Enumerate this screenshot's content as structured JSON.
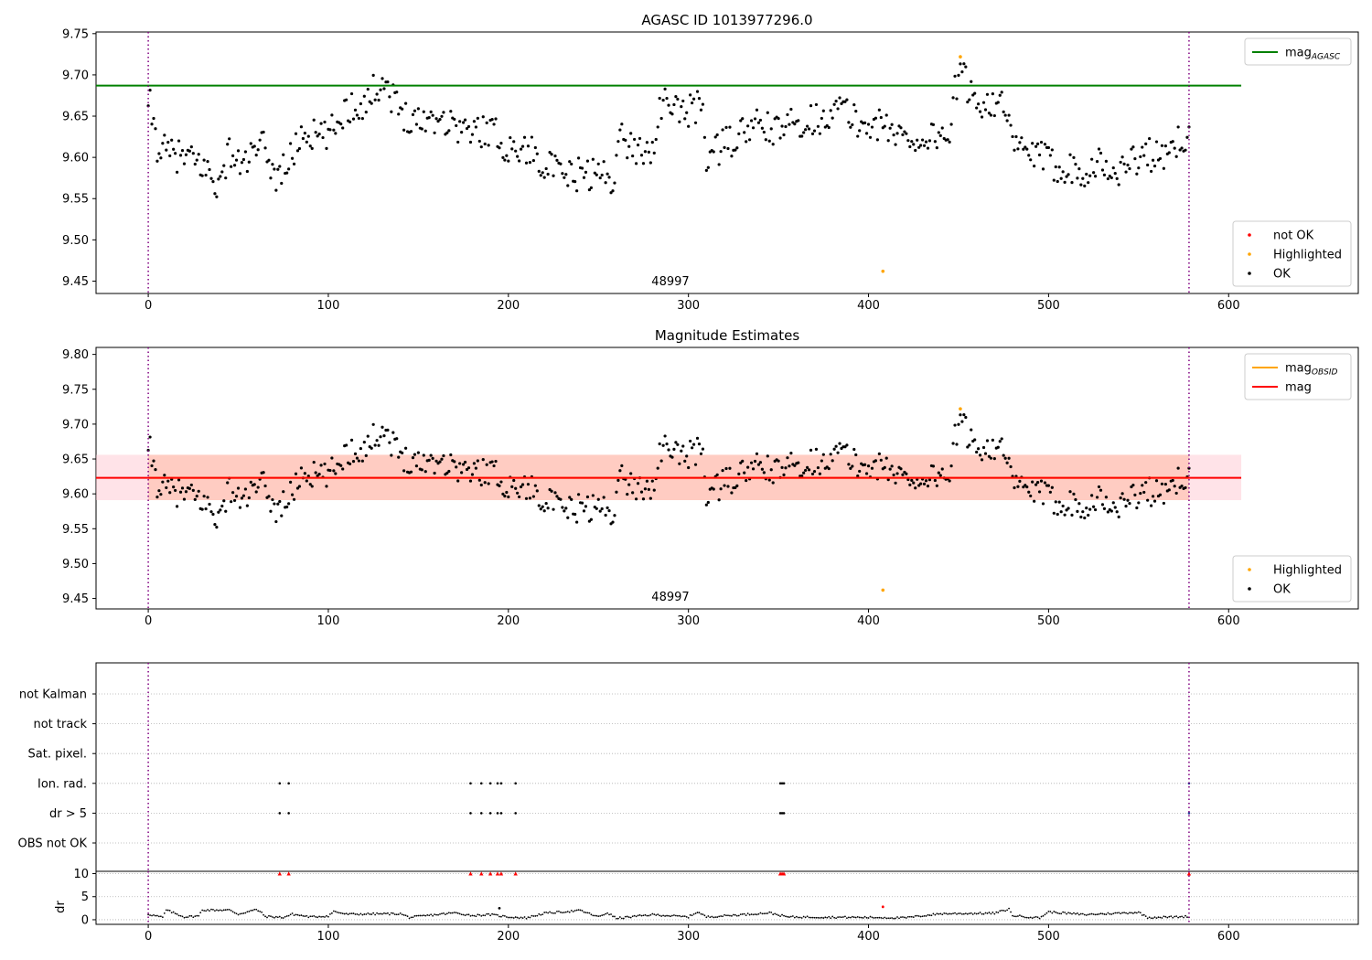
{
  "chart_data": [
    {
      "type": "scatter",
      "title": "AGASC ID 1013977296.0",
      "xlim": [
        -29,
        672
      ],
      "ylim": [
        9.435,
        9.752
      ],
      "yticks": [
        "9.45",
        "9.50",
        "9.55",
        "9.60",
        "9.65",
        "9.70",
        "9.75"
      ],
      "xticks": [
        "0",
        "100",
        "200",
        "300",
        "400",
        "500",
        "600"
      ],
      "grid": false,
      "annotation": "48997",
      "annotation_x": 290,
      "vlines_x": [
        0,
        578
      ],
      "hline": {
        "name": "mag_AGASC",
        "value": 9.687,
        "x_range": [
          -29,
          607
        ],
        "color": "#008000"
      },
      "legends": [
        {
          "position": "top-right",
          "entries": [
            {
              "label": "mag",
              "sub": "AGASC",
              "color": "#008000",
              "marker": "line"
            }
          ]
        },
        {
          "position": "bottom-right",
          "entries": [
            {
              "label": "not OK",
              "color": "#ff0000",
              "marker": "dot"
            },
            {
              "label": "Highlighted",
              "color": "#ffa500",
              "marker": "dot"
            },
            {
              "label": "OK",
              "color": "#000000",
              "marker": "dot"
            }
          ]
        }
      ],
      "highlighted": [
        [
          451,
          9.722
        ],
        [
          408,
          9.462
        ]
      ],
      "series_ok_anchors": [
        [
          0,
          9.65
        ],
        [
          1,
          9.662
        ],
        [
          5,
          9.615
        ],
        [
          10,
          9.605
        ],
        [
          20,
          9.6
        ],
        [
          30,
          9.59
        ],
        [
          40,
          9.565
        ],
        [
          45,
          9.61
        ],
        [
          50,
          9.59
        ],
        [
          60,
          9.605
        ],
        [
          65,
          9.615
        ],
        [
          70,
          9.575
        ],
        [
          80,
          9.6
        ],
        [
          85,
          9.63
        ],
        [
          95,
          9.625
        ],
        [
          100,
          9.625
        ],
        [
          110,
          9.66
        ],
        [
          120,
          9.665
        ],
        [
          130,
          9.695
        ],
        [
          135,
          9.675
        ],
        [
          140,
          9.655
        ],
        [
          150,
          9.645
        ],
        [
          160,
          9.65
        ],
        [
          170,
          9.64
        ],
        [
          180,
          9.63
        ],
        [
          190,
          9.635
        ],
        [
          200,
          9.61
        ],
        [
          210,
          9.61
        ],
        [
          220,
          9.595
        ],
        [
          230,
          9.575
        ],
        [
          240,
          9.58
        ],
        [
          250,
          9.58
        ],
        [
          258,
          9.575
        ],
        [
          262,
          9.625
        ],
        [
          270,
          9.61
        ],
        [
          280,
          9.61
        ],
        [
          285,
          9.665
        ],
        [
          300,
          9.655
        ],
        [
          308,
          9.665
        ],
        [
          310,
          9.6
        ],
        [
          320,
          9.615
        ],
        [
          330,
          9.63
        ],
        [
          340,
          9.64
        ],
        [
          350,
          9.63
        ],
        [
          360,
          9.645
        ],
        [
          370,
          9.645
        ],
        [
          380,
          9.655
        ],
        [
          385,
          9.66
        ],
        [
          395,
          9.64
        ],
        [
          405,
          9.64
        ],
        [
          415,
          9.63
        ],
        [
          425,
          9.62
        ],
        [
          435,
          9.625
        ],
        [
          445,
          9.63
        ],
        [
          448,
          9.68
        ],
        [
          452,
          9.7
        ],
        [
          460,
          9.665
        ],
        [
          470,
          9.67
        ],
        [
          475,
          9.66
        ],
        [
          480,
          9.615
        ],
        [
          490,
          9.605
        ],
        [
          500,
          9.595
        ],
        [
          505,
          9.59
        ],
        [
          520,
          9.585
        ],
        [
          530,
          9.595
        ],
        [
          535,
          9.575
        ],
        [
          545,
          9.595
        ],
        [
          555,
          9.605
        ],
        [
          565,
          9.595
        ],
        [
          572,
          9.62
        ],
        [
          578,
          9.63
        ]
      ],
      "series_ok_count": 578
    },
    {
      "type": "scatter",
      "title": "Magnitude Estimates",
      "xlim": [
        -29,
        672
      ],
      "ylim": [
        9.435,
        9.81
      ],
      "yticks": [
        "9.45",
        "9.50",
        "9.55",
        "9.60",
        "9.65",
        "9.70",
        "9.75",
        "9.80"
      ],
      "xticks": [
        "0",
        "100",
        "200",
        "300",
        "400",
        "500",
        "600"
      ],
      "grid": false,
      "annotation": "48997",
      "annotation_x": 290,
      "vlines_x": [
        0,
        578
      ],
      "hline": {
        "name": "mag",
        "value": 9.623,
        "x_range": [
          -29,
          607
        ],
        "color": "#ff0000"
      },
      "hline_obsid": {
        "name": "mag_OBSID",
        "value": 9.623,
        "x_range": [
          0,
          578
        ],
        "color": "#ffa500"
      },
      "band": {
        "low": 9.591,
        "high": 9.656,
        "x_range": [
          -29,
          607
        ]
      },
      "legends": [
        {
          "position": "top-right",
          "entries": [
            {
              "label": "mag",
              "sub": "OBSID",
              "color": "#ffa500",
              "marker": "line"
            },
            {
              "label": "mag",
              "sub": "",
              "color": "#ff0000",
              "marker": "line"
            }
          ]
        },
        {
          "position": "bottom-right",
          "entries": [
            {
              "label": "Highlighted",
              "color": "#ffa500",
              "marker": "dot"
            },
            {
              "label": "OK",
              "color": "#000000",
              "marker": "dot"
            }
          ]
        }
      ],
      "highlighted": [
        [
          451,
          9.722
        ],
        [
          408,
          9.462
        ]
      ]
    },
    {
      "type": "scatter",
      "xlim": [
        -29,
        672
      ],
      "xticks": [
        "0",
        "100",
        "200",
        "300",
        "400",
        "500",
        "600"
      ],
      "flag_rows": [
        "not Kalman",
        "not track",
        "Sat. pixel.",
        "Ion. rad.",
        "dr > 5",
        "OBS not OK"
      ],
      "flag_points": {
        "Ion. rad.": [
          73,
          78,
          179,
          185,
          190,
          194,
          196,
          204,
          351,
          352,
          353,
          578
        ],
        "dr > 5": [
          73,
          78,
          179,
          185,
          190,
          194,
          196,
          204,
          351,
          352,
          353,
          578
        ]
      },
      "vlines_x": [
        0,
        578
      ],
      "dr_panel": {
        "ylabel": "dr",
        "yticks": [
          "0",
          "5",
          "10"
        ],
        "ylim": [
          -1,
          10.5
        ],
        "clipped_points_x": [
          73,
          78,
          179,
          185,
          190,
          194,
          196,
          204,
          351,
          352,
          353,
          578
        ],
        "outlier_points": [
          [
            408,
            2.8
          ],
          [
            195,
            2.5
          ]
        ],
        "series_anchors": [
          [
            0,
            1.2
          ],
          [
            8,
            0.5
          ],
          [
            10,
            2.1
          ],
          [
            20,
            0.6
          ],
          [
            28,
            0.8
          ],
          [
            30,
            2.1
          ],
          [
            45,
            2.1
          ],
          [
            50,
            1.2
          ],
          [
            60,
            2.2
          ],
          [
            62,
            1.8
          ],
          [
            65,
            0.7
          ],
          [
            75,
            0.5
          ],
          [
            80,
            1.2
          ],
          [
            90,
            0.6
          ],
          [
            100,
            0.8
          ],
          [
            103,
            1.8
          ],
          [
            110,
            1.2
          ],
          [
            140,
            1.3
          ],
          [
            145,
            0.5
          ],
          [
            160,
            1.1
          ],
          [
            170,
            1.5
          ],
          [
            180,
            0.9
          ],
          [
            190,
            1.1
          ],
          [
            200,
            0.6
          ],
          [
            210,
            0.4
          ],
          [
            220,
            1.4
          ],
          [
            240,
            2.0
          ],
          [
            250,
            0.6
          ],
          [
            255,
            1.5
          ],
          [
            260,
            0.3
          ],
          [
            280,
            1.1
          ],
          [
            300,
            0.6
          ],
          [
            305,
            1.7
          ],
          [
            310,
            0.6
          ],
          [
            330,
            1.1
          ],
          [
            345,
            1.5
          ],
          [
            355,
            0.6
          ],
          [
            400,
            0.5
          ],
          [
            420,
            0.4
          ],
          [
            440,
            1.3
          ],
          [
            470,
            1.4
          ],
          [
            478,
            2.3
          ],
          [
            480,
            0.9
          ],
          [
            495,
            0.4
          ],
          [
            500,
            1.7
          ],
          [
            520,
            1.1
          ],
          [
            550,
            1.6
          ],
          [
            555,
            0.5
          ],
          [
            570,
            0.6
          ],
          [
            578,
            0.7
          ]
        ]
      }
    }
  ]
}
